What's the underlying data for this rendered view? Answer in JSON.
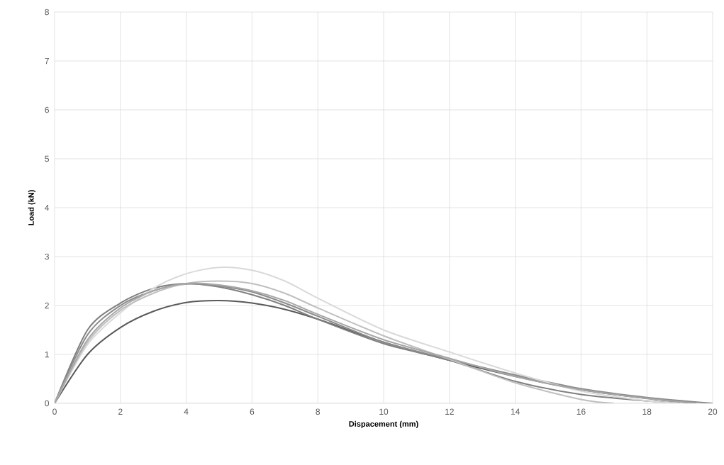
{
  "chart_data": {
    "type": "line",
    "xlabel": "Dispacement (mm)",
    "ylabel": "Load (kN)",
    "xlim": [
      0,
      20
    ],
    "ylim": [
      0,
      8
    ],
    "xticks": [
      0,
      2,
      4,
      6,
      8,
      10,
      12,
      14,
      16,
      18,
      20
    ],
    "yticks": [
      0,
      1,
      2,
      3,
      4,
      5,
      6,
      7,
      8
    ],
    "grid": true,
    "marker": "none",
    "line_style": "solid",
    "series": [
      {
        "color": "#595959",
        "x": [
          0,
          1,
          2,
          3,
          4,
          5,
          6,
          7,
          8,
          10,
          12,
          14,
          16,
          18,
          19.5
        ],
        "values": [
          0,
          1.0,
          1.55,
          1.88,
          2.06,
          2.1,
          2.05,
          1.92,
          1.72,
          1.25,
          0.88,
          0.55,
          0.28,
          0.1,
          0
        ]
      },
      {
        "color": "#7f7f7f",
        "x": [
          0,
          1,
          2,
          3,
          4,
          5,
          6,
          7,
          8,
          10,
          12,
          14,
          16,
          18,
          19
        ],
        "values": [
          0,
          1.5,
          2.05,
          2.35,
          2.45,
          2.38,
          2.22,
          2.0,
          1.72,
          1.22,
          0.88,
          0.45,
          0.18,
          0.05,
          0
        ]
      },
      {
        "color": "#8c8c8c",
        "x": [
          0,
          1,
          2,
          3,
          4,
          5,
          6,
          7,
          8,
          10,
          12,
          14,
          16,
          18,
          20
        ],
        "values": [
          0,
          1.4,
          2.0,
          2.3,
          2.44,
          2.4,
          2.28,
          2.05,
          1.78,
          1.25,
          0.9,
          0.58,
          0.3,
          0.12,
          0
        ]
      },
      {
        "color": "#d9d9d9",
        "x": [
          0,
          1,
          2,
          3,
          4,
          5,
          6,
          7,
          8,
          10,
          12,
          14,
          16,
          18,
          19
        ],
        "values": [
          0,
          1.2,
          1.85,
          2.35,
          2.65,
          2.78,
          2.72,
          2.5,
          2.15,
          1.5,
          1.05,
          0.62,
          0.25,
          0.05,
          0
        ]
      },
      {
        "color": "#bfbfbf",
        "x": [
          0,
          1,
          2,
          3,
          4,
          5,
          6,
          7,
          8,
          10,
          12,
          14,
          16,
          17
        ],
        "values": [
          0,
          1.25,
          1.9,
          2.25,
          2.45,
          2.5,
          2.45,
          2.25,
          1.95,
          1.38,
          0.9,
          0.42,
          0.08,
          0
        ]
      },
      {
        "color": "#a6a6a6",
        "x": [
          0,
          1,
          2,
          3,
          4,
          5,
          6,
          7,
          8,
          10,
          12,
          14,
          16,
          18,
          19.5
        ],
        "values": [
          0,
          1.3,
          1.95,
          2.3,
          2.45,
          2.42,
          2.3,
          2.1,
          1.82,
          1.3,
          0.92,
          0.55,
          0.28,
          0.1,
          0
        ]
      }
    ]
  }
}
